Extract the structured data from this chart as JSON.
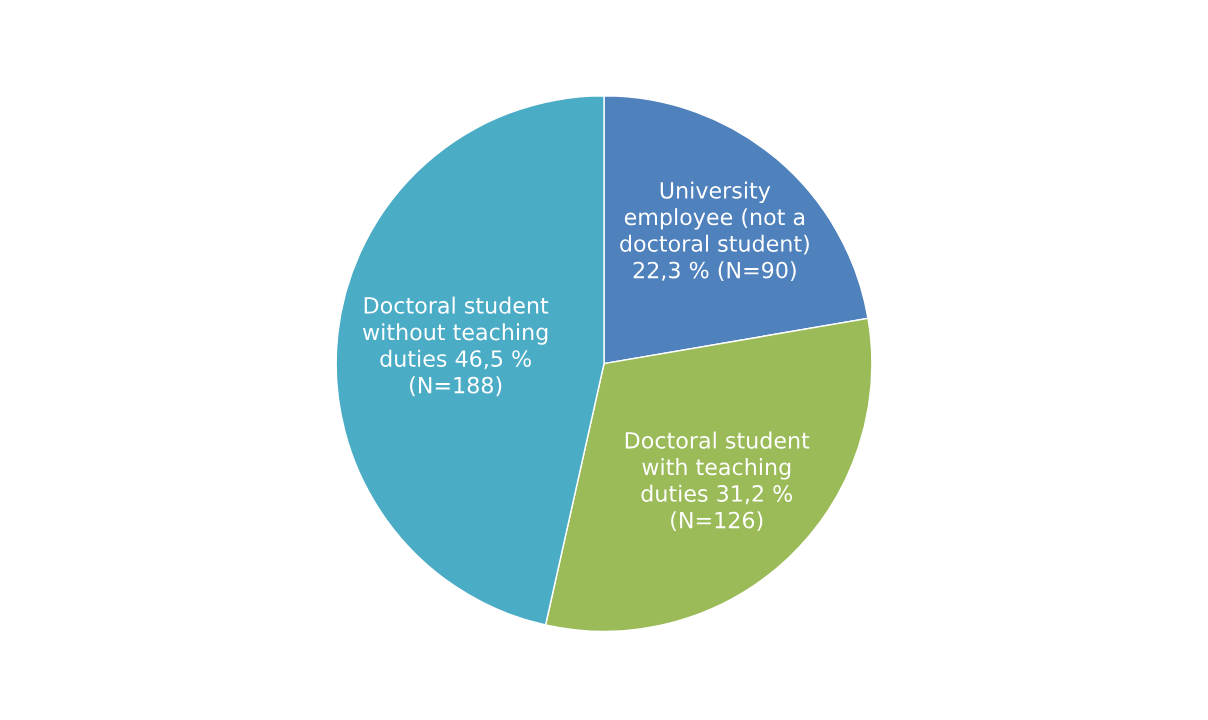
{
  "chart_data": {
    "type": "pie",
    "categories": [
      "University employee (not a doctoral student)",
      "Doctoral student with teaching duties",
      "Doctoral student without teaching duties"
    ],
    "values": [
      22.3,
      31.2,
      46.5
    ],
    "value_labels": [
      "22,3 % (N=90)",
      "31,2 % (N=126)",
      "46,5 % (N=188)"
    ],
    "colors": [
      "#4f81bd",
      "#9bbb59",
      "#4bacc6"
    ],
    "legend": false
  }
}
